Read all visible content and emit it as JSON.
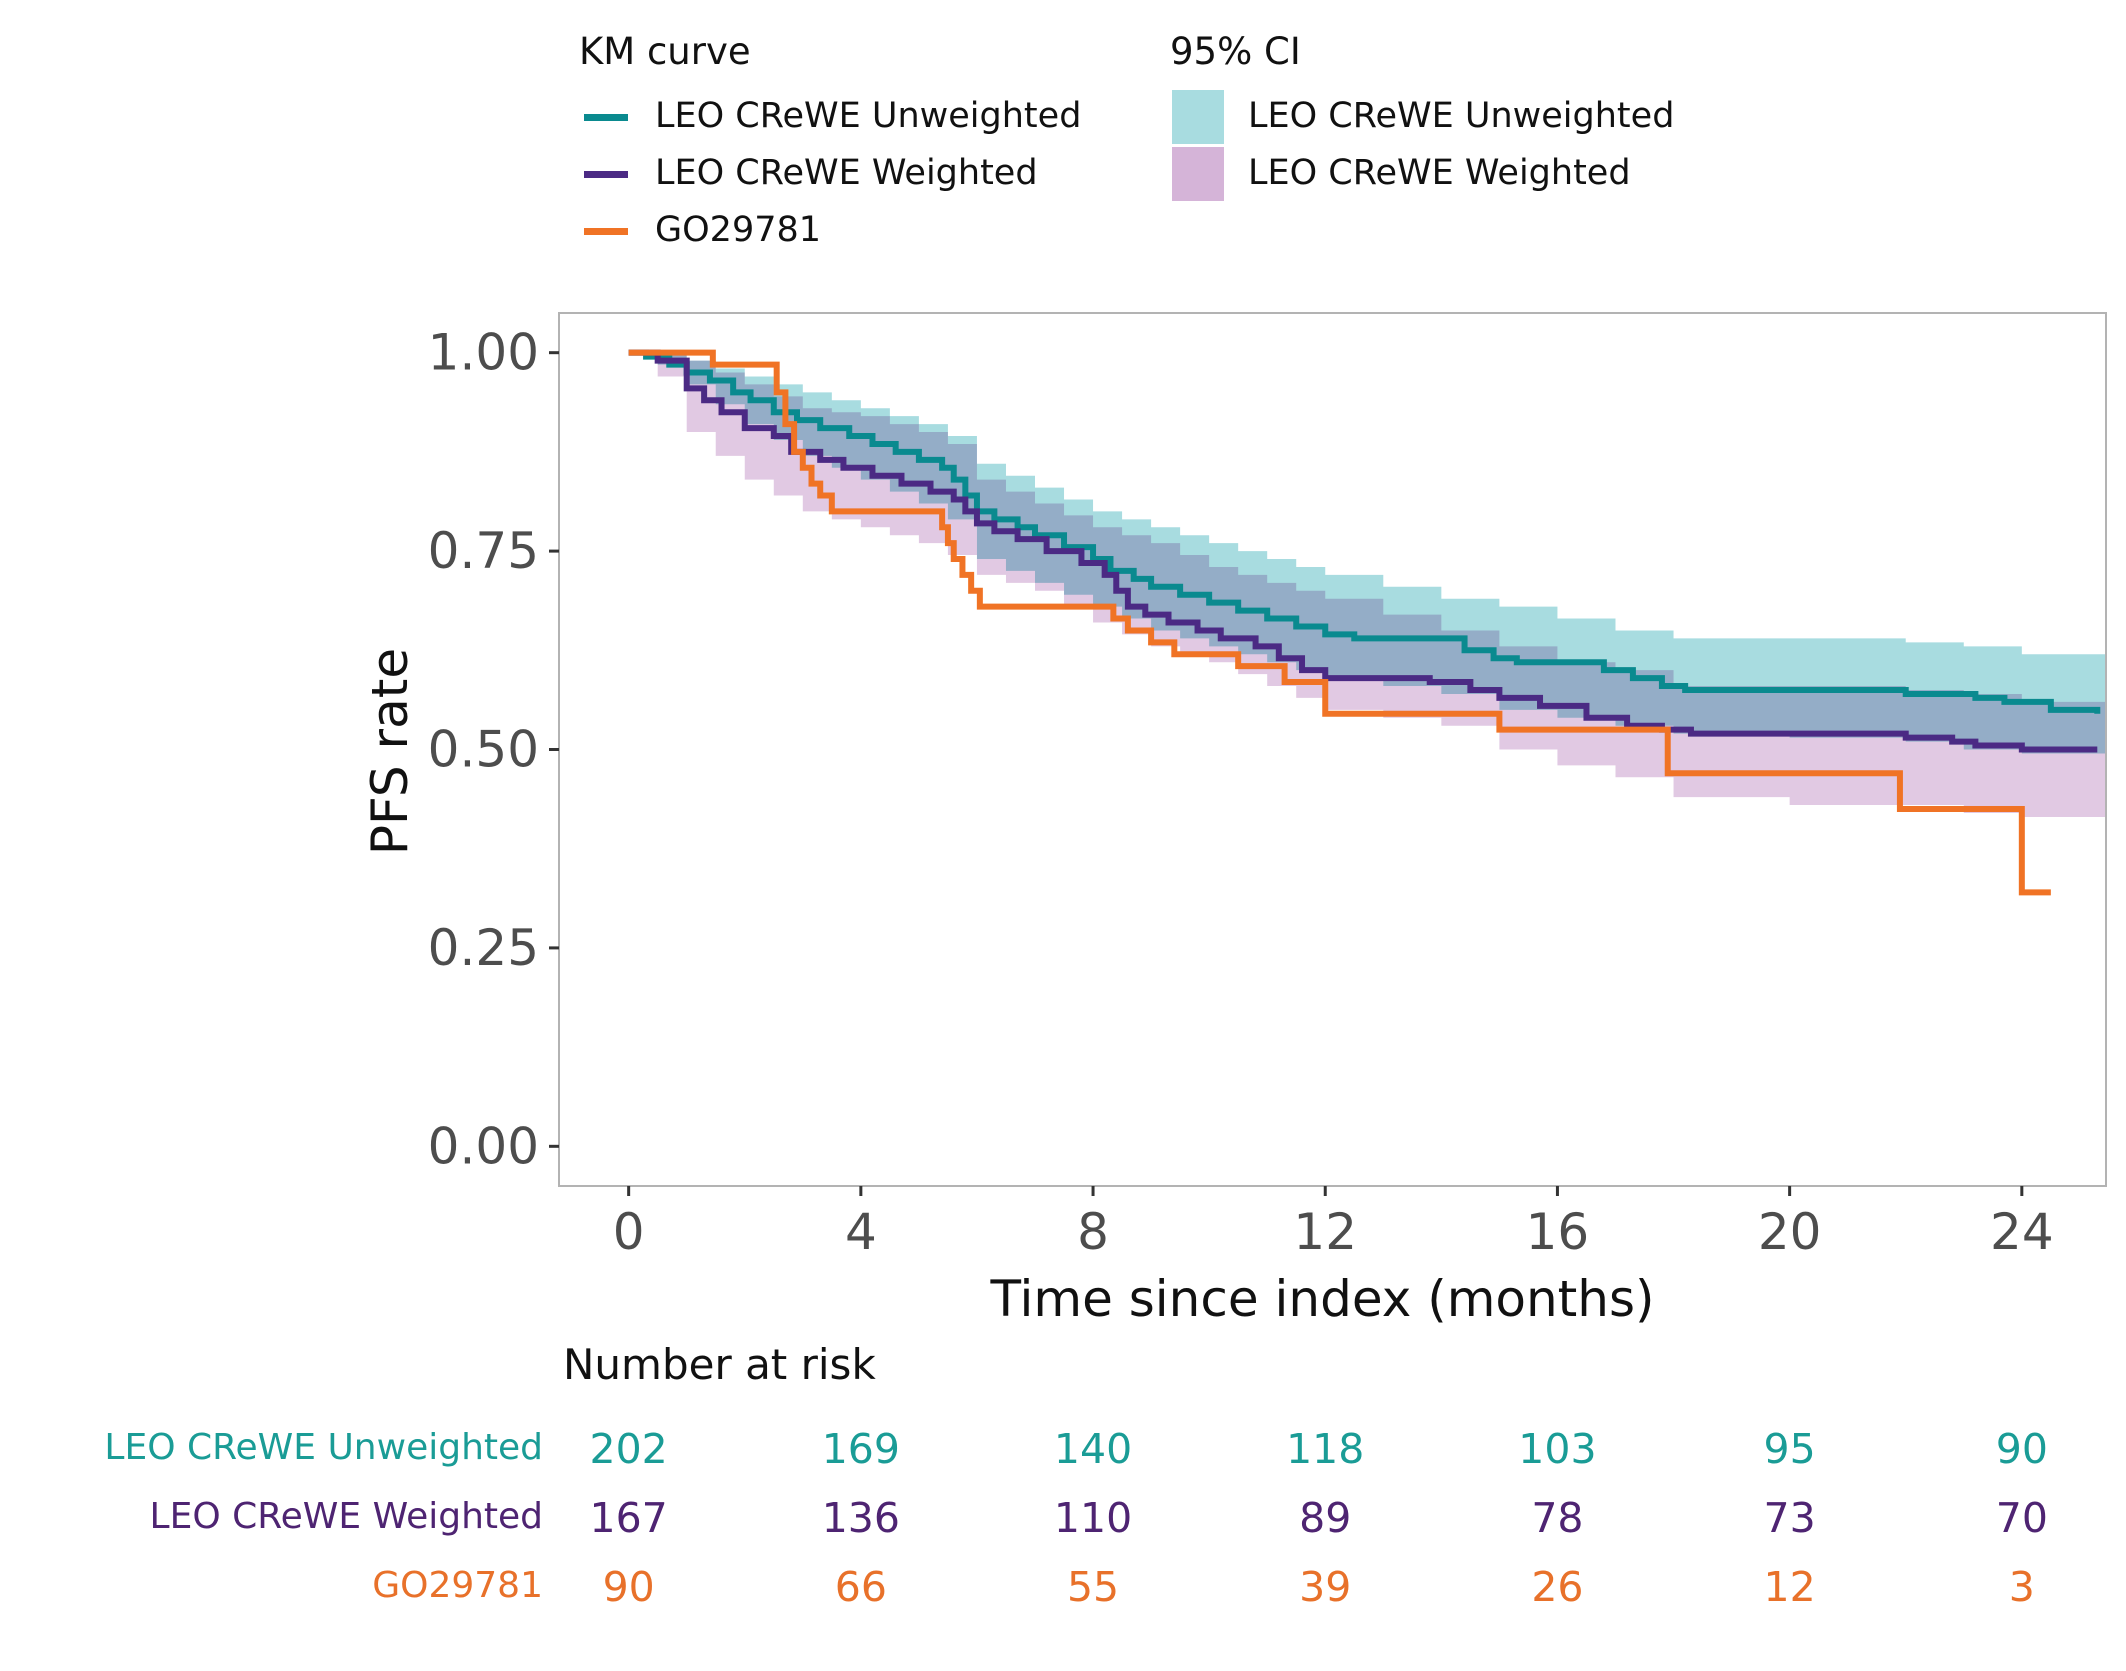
{
  "legend": {
    "km_title": "KM curve",
    "ci_title": "95% CI",
    "km_items": [
      {
        "label": "LEO CReWE Unweighted",
        "color": "#0A8A8F"
      },
      {
        "label": "LEO CReWE Weighted",
        "color": "#4B2A84"
      },
      {
        "label": "GO29781",
        "color": "#F07325"
      }
    ],
    "ci_items": [
      {
        "label": "LEO CReWE Unweighted",
        "color": "#A8DCE0"
      },
      {
        "label": "LEO CReWE Weighted",
        "color": "#D5B4D8"
      }
    ]
  },
  "chart_data": {
    "type": "line",
    "subtype": "kaplan-meier step",
    "title": "",
    "xlabel": "Time since index (months)",
    "ylabel": "PFS rate",
    "xlim": [
      -1.2,
      25.45
    ],
    "ylim": [
      -0.05,
      1.05
    ],
    "xticks": [
      0,
      4,
      8,
      12,
      16,
      20,
      24
    ],
    "yticks": [
      0.0,
      0.25,
      0.5,
      0.75,
      1.0
    ],
    "ytick_labels": [
      "0.00",
      "0.25",
      "0.50",
      "0.75",
      "1.00"
    ],
    "grid": false,
    "legend_position": "top",
    "series": [
      {
        "name": "LEO CReWE Unweighted",
        "color": "#0A8A8F",
        "x": [
          0,
          0.3,
          0.7,
          1.0,
          1.4,
          1.8,
          2.1,
          2.5,
          2.9,
          3.3,
          3.8,
          4.2,
          4.6,
          5.0,
          5.4,
          5.6,
          5.8,
          6.0,
          6.3,
          6.7,
          7.0,
          7.5,
          8.0,
          8.3,
          8.7,
          9.0,
          9.5,
          10.0,
          10.5,
          11.0,
          11.5,
          12.0,
          12.5,
          14.4,
          14.9,
          15.3,
          16.8,
          17.3,
          17.8,
          18.2,
          22.0,
          23.2,
          23.7,
          24.5,
          25.3
        ],
        "y": [
          1.0,
          0.995,
          0.985,
          0.975,
          0.965,
          0.95,
          0.94,
          0.925,
          0.915,
          0.905,
          0.895,
          0.885,
          0.875,
          0.865,
          0.855,
          0.84,
          0.82,
          0.8,
          0.79,
          0.78,
          0.77,
          0.755,
          0.74,
          0.725,
          0.715,
          0.705,
          0.695,
          0.685,
          0.675,
          0.665,
          0.655,
          0.645,
          0.64,
          0.625,
          0.615,
          0.61,
          0.6,
          0.59,
          0.58,
          0.575,
          0.57,
          0.565,
          0.56,
          0.55,
          0.545
        ]
      },
      {
        "name": "LEO CReWE Weighted",
        "color": "#4B2A84",
        "x": [
          0,
          0.5,
          1.0,
          1.3,
          1.6,
          2.0,
          2.5,
          2.8,
          3.3,
          3.7,
          4.2,
          4.7,
          5.2,
          5.6,
          5.8,
          6.0,
          6.3,
          6.7,
          7.2,
          7.8,
          8.2,
          8.4,
          8.6,
          8.9,
          9.3,
          9.8,
          10.2,
          10.8,
          11.2,
          11.6,
          12.0,
          13.8,
          14.5,
          15.0,
          15.7,
          16.5,
          17.2,
          17.8,
          18.3,
          22.0,
          22.8,
          23.2,
          24.0,
          25.3
        ],
        "y": [
          1.0,
          0.99,
          0.955,
          0.94,
          0.925,
          0.905,
          0.895,
          0.875,
          0.865,
          0.855,
          0.845,
          0.835,
          0.825,
          0.815,
          0.8,
          0.785,
          0.775,
          0.765,
          0.75,
          0.735,
          0.72,
          0.7,
          0.68,
          0.67,
          0.66,
          0.65,
          0.64,
          0.63,
          0.615,
          0.6,
          0.59,
          0.585,
          0.575,
          0.565,
          0.555,
          0.54,
          0.53,
          0.525,
          0.52,
          0.515,
          0.51,
          0.505,
          0.5,
          0.5
        ]
      },
      {
        "name": "GO29781",
        "color": "#F07325",
        "x": [
          0,
          1.45,
          2.55,
          2.7,
          2.85,
          3.0,
          3.15,
          3.3,
          3.5,
          5.4,
          5.5,
          5.6,
          5.75,
          5.9,
          6.05,
          8.2,
          8.35,
          8.6,
          9.0,
          9.4,
          10.5,
          11.3,
          12.0,
          15.0,
          17.9,
          21.9,
          24.0,
          24.5
        ],
        "y": [
          1.0,
          0.985,
          0.95,
          0.91,
          0.875,
          0.855,
          0.835,
          0.82,
          0.8,
          0.78,
          0.76,
          0.74,
          0.72,
          0.7,
          0.68,
          0.68,
          0.665,
          0.65,
          0.635,
          0.62,
          0.605,
          0.585,
          0.545,
          0.525,
          0.47,
          0.425,
          0.32,
          0.32
        ]
      }
    ],
    "ci_bands": [
      {
        "name": "LEO CReWE Unweighted",
        "color": "#A8DCE0",
        "x": [
          0,
          0.5,
          1.0,
          1.5,
          2.0,
          2.5,
          3.0,
          3.5,
          4.0,
          4.5,
          5.0,
          5.5,
          6.0,
          6.5,
          7.0,
          7.5,
          8.0,
          8.5,
          9.0,
          9.5,
          10.0,
          10.5,
          11.0,
          11.5,
          12.0,
          13.0,
          14.0,
          15.0,
          16.0,
          17.0,
          18.0,
          20.0,
          22.0,
          23.0,
          24.0,
          25.45
        ],
        "upper": [
          1.0,
          1.0,
          0.99,
          0.98,
          0.97,
          0.96,
          0.95,
          0.94,
          0.93,
          0.92,
          0.91,
          0.895,
          0.86,
          0.845,
          0.83,
          0.815,
          0.8,
          0.79,
          0.78,
          0.77,
          0.76,
          0.75,
          0.74,
          0.73,
          0.72,
          0.705,
          0.69,
          0.68,
          0.665,
          0.65,
          0.64,
          0.64,
          0.635,
          0.63,
          0.62,
          0.61
        ],
        "lower": [
          1.0,
          0.985,
          0.96,
          0.935,
          0.91,
          0.89,
          0.87,
          0.855,
          0.84,
          0.825,
          0.81,
          0.79,
          0.74,
          0.725,
          0.71,
          0.695,
          0.68,
          0.665,
          0.65,
          0.64,
          0.63,
          0.62,
          0.61,
          0.6,
          0.59,
          0.58,
          0.57,
          0.55,
          0.54,
          0.53,
          0.52,
          0.515,
          0.51,
          0.5,
          0.495,
          0.49
        ]
      },
      {
        "name": "LEO CReWE Weighted",
        "color": "#D5B4D8",
        "x": [
          0,
          0.5,
          1.0,
          1.5,
          2.0,
          2.5,
          3.0,
          3.5,
          4.0,
          4.5,
          5.0,
          5.5,
          6.0,
          6.5,
          7.0,
          7.5,
          8.0,
          8.5,
          9.0,
          9.5,
          10.0,
          10.5,
          11.0,
          11.5,
          12.0,
          13.0,
          14.0,
          15.0,
          16.0,
          17.0,
          18.0,
          20.0,
          22.0,
          23.0,
          24.0,
          25.45
        ],
        "upper": [
          1.0,
          1.0,
          0.99,
          0.975,
          0.96,
          0.945,
          0.93,
          0.925,
          0.92,
          0.91,
          0.9,
          0.885,
          0.84,
          0.825,
          0.81,
          0.795,
          0.78,
          0.77,
          0.76,
          0.745,
          0.73,
          0.72,
          0.71,
          0.7,
          0.69,
          0.67,
          0.65,
          0.63,
          0.61,
          0.6,
          0.58,
          0.58,
          0.575,
          0.57,
          0.56,
          0.55
        ],
        "lower": [
          1.0,
          0.97,
          0.9,
          0.87,
          0.84,
          0.82,
          0.8,
          0.79,
          0.78,
          0.77,
          0.76,
          0.745,
          0.72,
          0.71,
          0.7,
          0.68,
          0.66,
          0.645,
          0.63,
          0.62,
          0.61,
          0.595,
          0.58,
          0.565,
          0.55,
          0.54,
          0.53,
          0.5,
          0.48,
          0.465,
          0.44,
          0.43,
          0.43,
          0.42,
          0.415,
          0.41
        ]
      }
    ]
  },
  "risk_table": {
    "title": "Number at risk",
    "times": [
      0,
      4,
      8,
      12,
      16,
      20,
      24
    ],
    "rows": [
      {
        "label": "LEO CReWE Unweighted",
        "color": "#1A9C96",
        "values": [
          "202",
          "169",
          "140",
          "118",
          "103",
          "95",
          "90"
        ]
      },
      {
        "label": "LEO CReWE Weighted",
        "color": "#4E2472",
        "values": [
          "167",
          "136",
          "110",
          "89",
          "78",
          "73",
          "70"
        ]
      },
      {
        "label": "GO29781",
        "color": "#E8712A",
        "values": [
          "90",
          "66",
          "55",
          "39",
          "26",
          "12",
          "3"
        ]
      }
    ]
  }
}
